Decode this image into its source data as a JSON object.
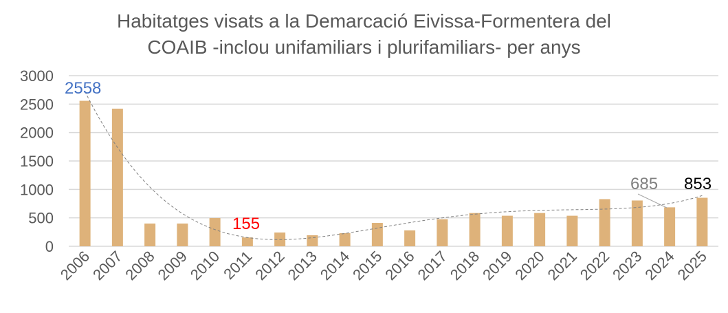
{
  "chart_data": {
    "type": "bar",
    "title": [
      "Habitatges visats a la Demarcació Eivissa-Formentera del",
      "COAIB -inclou unifamiliars i plurifamiliars- per anys"
    ],
    "xlabel": "",
    "ylabel": "",
    "ylim": [
      0,
      3000
    ],
    "yticks": [
      0,
      500,
      1000,
      1500,
      2000,
      2500,
      3000
    ],
    "grid": true,
    "legend": "none",
    "categories": [
      "2006",
      "2007",
      "2008",
      "2009",
      "2010",
      "2011",
      "2012",
      "2013",
      "2014",
      "2015",
      "2016",
      "2017",
      "2018",
      "2019",
      "2020",
      "2021",
      "2022",
      "2023",
      "2024",
      "2025"
    ],
    "values": [
      2558,
      2420,
      400,
      400,
      496,
      155,
      242,
      194,
      230,
      411,
      280,
      476,
      585,
      537,
      585,
      537,
      829,
      805,
      685,
      853
    ],
    "bar_color": "#deb27a",
    "trendline": {
      "type": "polynomial",
      "order": 4,
      "color": "#808080",
      "style": "dashed"
    },
    "data_labels": [
      {
        "index": 0,
        "text": "2558",
        "color": "#4472c4"
      },
      {
        "index": 5,
        "text": "155",
        "color": "#ff0000"
      },
      {
        "index": 18,
        "text": "685",
        "color": "#808080"
      },
      {
        "index": 19,
        "text": "853",
        "color": "#000000"
      }
    ]
  }
}
